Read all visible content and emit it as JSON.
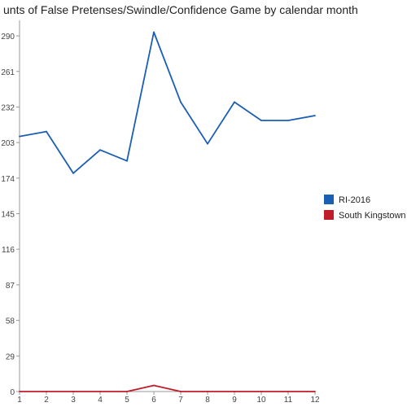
{
  "chart_data": {
    "type": "line",
    "title": "unts of False Pretenses/Swindle/Confidence Game by calendar month",
    "xlabel": "",
    "ylabel": "",
    "categories": [
      "1",
      "2",
      "3",
      "4",
      "5",
      "6",
      "7",
      "8",
      "9",
      "10",
      "11",
      "12"
    ],
    "ylim": [
      0,
      300
    ],
    "yticks": [
      0,
      29,
      58,
      87,
      116,
      145,
      174,
      203,
      232,
      261,
      290
    ],
    "grid": false,
    "legend_position": "right",
    "series": [
      {
        "name": "RI-2016",
        "color": "#1a5fb4",
        "values": [
          208,
          212,
          178,
          197,
          188,
          293,
          236,
          202,
          236,
          221,
          221,
          225
        ]
      },
      {
        "name": "South Kingstown",
        "color": "#c01c28",
        "values": [
          0,
          0,
          0,
          0,
          0,
          5,
          0,
          0,
          0,
          0,
          0,
          0
        ]
      }
    ]
  }
}
